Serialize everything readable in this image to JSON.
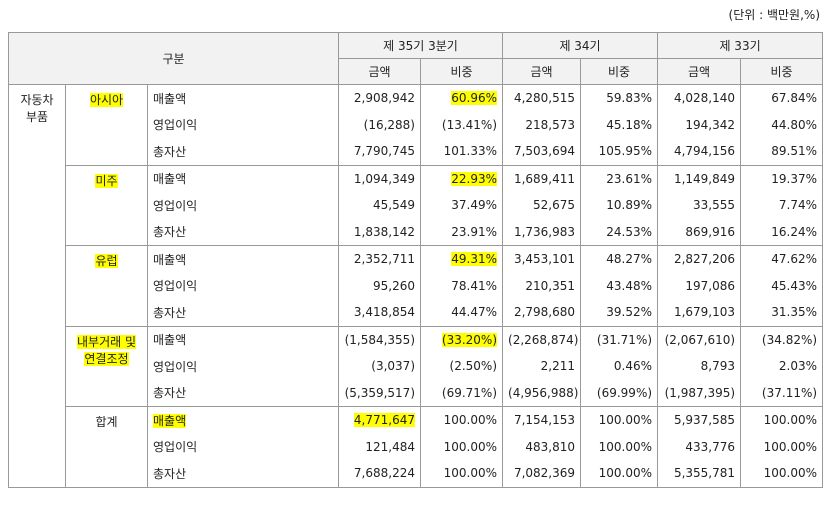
{
  "unit": "(단위 : 백만원,%)",
  "header": {
    "group": "구분",
    "periods": [
      "제 35기 3분기",
      "제 34기",
      "제 33기"
    ],
    "columns": [
      "금액",
      "비중",
      "금액",
      "비중",
      "금액",
      "비중"
    ]
  },
  "table": {
    "category": "자동차 부품",
    "groups": [
      {
        "region": "아시아",
        "highlight": true,
        "rows": [
          {
            "item": "매출액",
            "values": [
              "2,908,942",
              "60.96%",
              "4,280,515",
              "59.83%",
              "4,028,140",
              "67.84%"
            ],
            "highlight": [
              1
            ]
          },
          {
            "item": "영업이익",
            "values": [
              "(16,288)",
              "(13.41%)",
              "218,573",
              "45.18%",
              "194,342",
              "44.80%"
            ]
          },
          {
            "item": "총자산",
            "values": [
              "7,790,745",
              "101.33%",
              "7,503,694",
              "105.95%",
              "4,794,156",
              "89.51%"
            ]
          }
        ]
      },
      {
        "region": "미주",
        "highlight": true,
        "rows": [
          {
            "item": "매출액",
            "values": [
              "1,094,349",
              "22.93%",
              "1,689,411",
              "23.61%",
              "1,149,849",
              "19.37%"
            ],
            "highlight": [
              1
            ]
          },
          {
            "item": "영업이익",
            "values": [
              "45,549",
              "37.49%",
              "52,675",
              "10.89%",
              "33,555",
              "7.74%"
            ]
          },
          {
            "item": "총자산",
            "values": [
              "1,838,142",
              "23.91%",
              "1,736,983",
              "24.53%",
              "869,916",
              "16.24%"
            ]
          }
        ]
      },
      {
        "region": "유럽",
        "highlight": true,
        "rows": [
          {
            "item": "매출액",
            "values": [
              "2,352,711",
              "49.31%",
              "3,453,101",
              "48.27%",
              "2,827,206",
              "47.62%"
            ],
            "highlight": [
              1
            ]
          },
          {
            "item": "영업이익",
            "values": [
              "95,260",
              "78.41%",
              "210,351",
              "43.48%",
              "197,086",
              "45.43%"
            ]
          },
          {
            "item": "총자산",
            "values": [
              "3,418,854",
              "44.47%",
              "2,798,680",
              "39.52%",
              "1,679,103",
              "31.35%"
            ]
          }
        ]
      },
      {
        "region": "내부거래 및 연결조정",
        "highlight": true,
        "rows": [
          {
            "item": "매출액",
            "values": [
              "(1,584,355)",
              "(33.20%)",
              "(2,268,874)",
              "(31.71%)",
              "(2,067,610)",
              "(34.82%)"
            ],
            "highlight": [
              1
            ]
          },
          {
            "item": "영업이익",
            "values": [
              "(3,037)",
              "(2.50%)",
              "2,211",
              "0.46%",
              "8,793",
              "2.03%"
            ]
          },
          {
            "item": "총자산",
            "values": [
              "(5,359,517)",
              "(69.71%)",
              "(4,956,988)",
              "(69.99%)",
              "(1,987,395)",
              "(37.11%)"
            ]
          }
        ]
      },
      {
        "region": "합계",
        "highlight": false,
        "rows": [
          {
            "item": "매출액",
            "item_highlight": true,
            "values": [
              "4,771,647",
              "100.00%",
              "7,154,153",
              "100.00%",
              "5,937,585",
              "100.00%"
            ],
            "highlight": [
              0
            ]
          },
          {
            "item": "영업이익",
            "values": [
              "121,484",
              "100.00%",
              "483,810",
              "100.00%",
              "433,776",
              "100.00%"
            ]
          },
          {
            "item": "총자산",
            "values": [
              "7,688,224",
              "100.00%",
              "7,082,369",
              "100.00%",
              "5,355,781",
              "100.00%"
            ]
          }
        ]
      }
    ]
  }
}
